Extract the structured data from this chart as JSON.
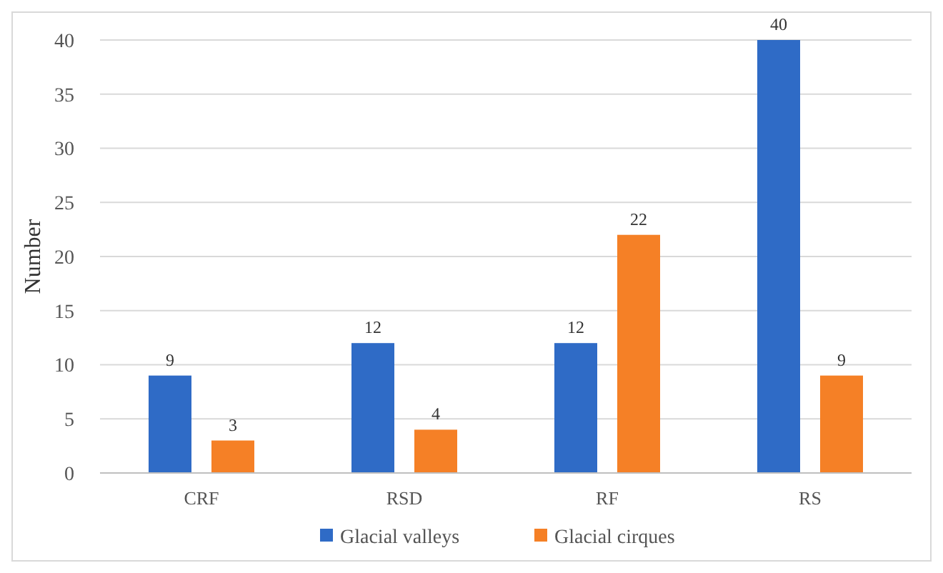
{
  "chart_data": {
    "type": "bar",
    "ylabel": "Number",
    "categories": [
      "CRF",
      "RSD",
      "RF",
      "RS"
    ],
    "series": [
      {
        "name": "Glacial valleys",
        "color": "#2f6bc6",
        "values": [
          9,
          12,
          12,
          40
        ]
      },
      {
        "name": "Glacial cirques",
        "color": "#f58026",
        "values": [
          3,
          4,
          22,
          9
        ]
      }
    ],
    "ylim": [
      0,
      40
    ],
    "yticks": [
      0,
      5,
      10,
      15,
      20,
      25,
      30,
      35,
      40
    ],
    "grid": "y",
    "legend": "bottom",
    "data_labels": true
  }
}
